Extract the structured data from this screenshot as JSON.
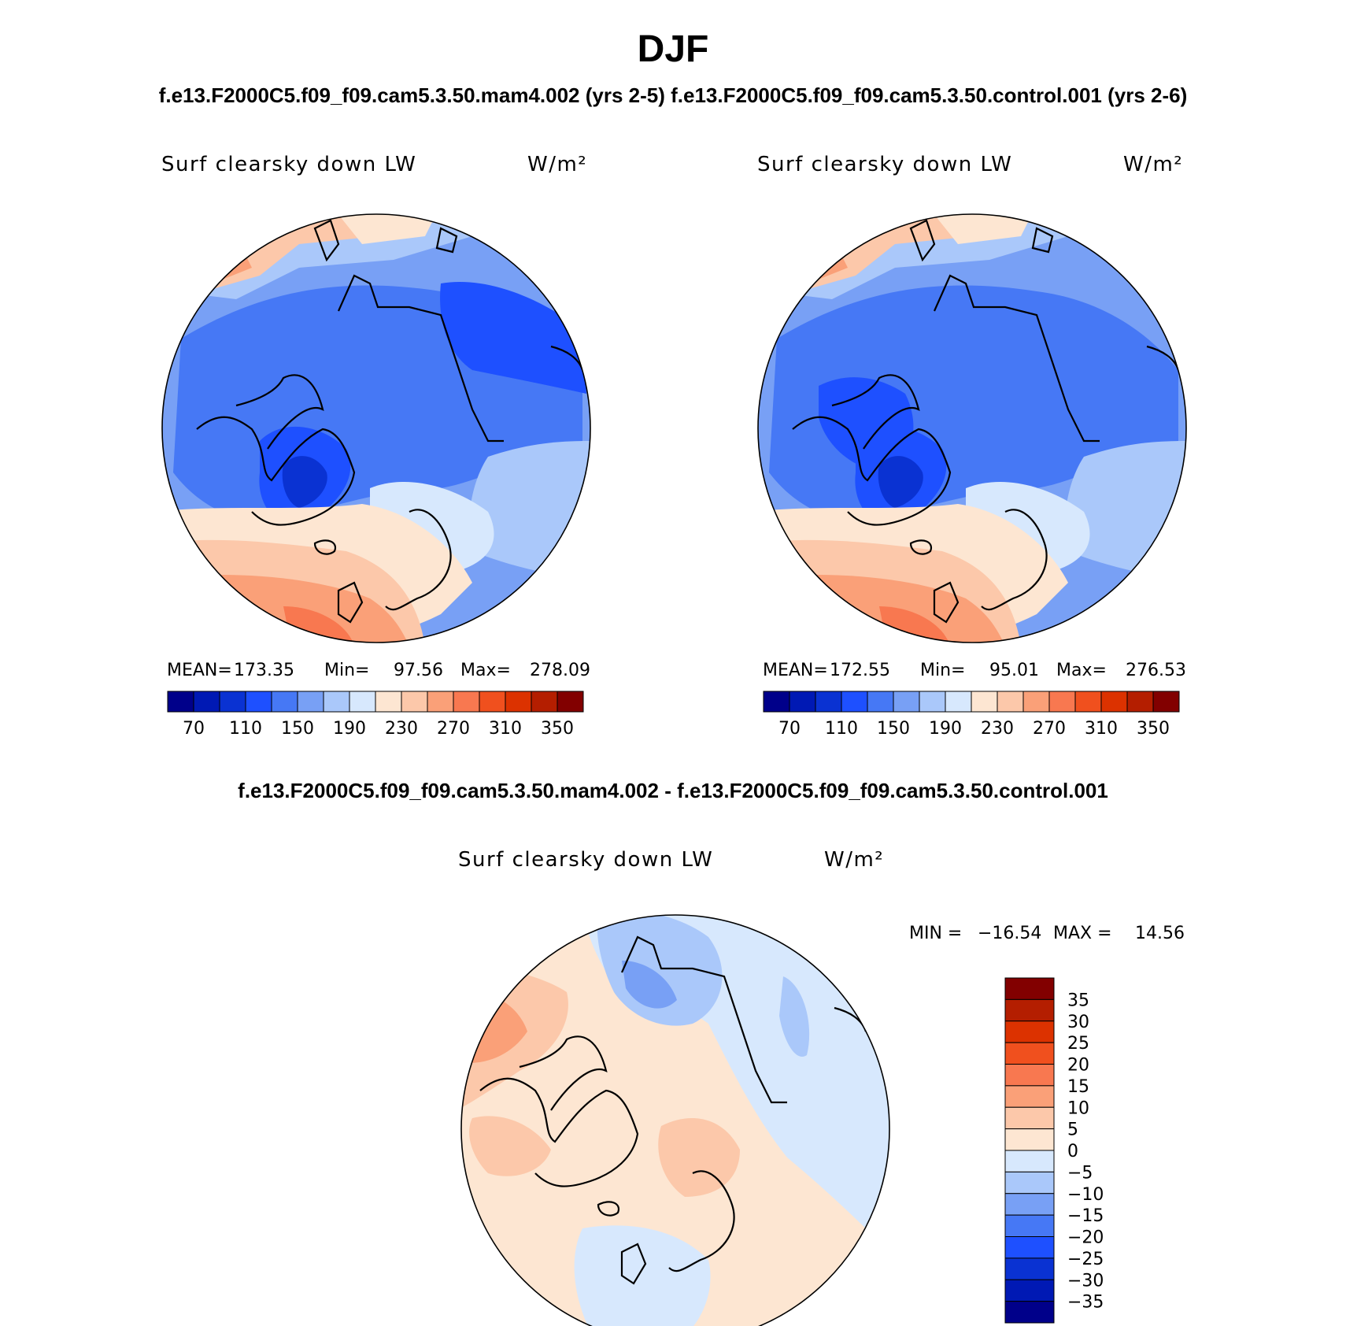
{
  "title": "DJF",
  "run_a": "f.e13.F2000C5.f09_f09.cam5.3.50.mam4.002",
  "run_b": "f.e13.F2000C5.f09_f09.cam5.3.50.control.001",
  "top_header": "f.e13.F2000C5.f09_f09.cam5.3.50.mam4.002 (yrs 2-5) f.e13.F2000C5.f09_f09.cam5.3.50.control.001 (yrs 2-6)",
  "diff_header": "f.e13.F2000C5.f09_f09.cam5.3.50.mam4.002 - f.e13.F2000C5.f09_f09.cam5.3.50.control.001",
  "chart_data": [
    {
      "type": "heatmap",
      "projection": "north polar stereographic",
      "variable": "Surf clearsky down LW",
      "units": "W/m²",
      "case": "f.e13.F2000C5.f09_f09.cam5.3.50.mam4.002 (yrs 2-5)",
      "stats": {
        "mean_label": "MEAN=",
        "mean": "173.35",
        "min_label": "Min=",
        "min": "97.56",
        "max_label": "Max=",
        "max": "278.09"
      },
      "levels": [
        70,
        90,
        110,
        130,
        150,
        170,
        190,
        210,
        230,
        250,
        270,
        290,
        310,
        330,
        350
      ],
      "tick_labels": [
        "70",
        "110",
        "150",
        "190",
        "230",
        "270",
        "310",
        "350"
      ],
      "colors": [
        "#00008a",
        "#0019b4",
        "#0a32d2",
        "#1e50ff",
        "#4678f5",
        "#78a0f5",
        "#aac8fa",
        "#d7e8fd",
        "#fde6d2",
        "#fcc8aa",
        "#faa078",
        "#f87850",
        "#f0501e",
        "#dc3200",
        "#b41e00",
        "#820000"
      ]
    },
    {
      "type": "heatmap",
      "projection": "north polar stereographic",
      "variable": "Surf clearsky down LW",
      "units": "W/m²",
      "case": "f.e13.F2000C5.f09_f09.cam5.3.50.control.001 (yrs 2-6)",
      "stats": {
        "mean_label": "MEAN=",
        "mean": "172.55",
        "min_label": "Min=",
        "min": "95.01",
        "max_label": "Max=",
        "max": "276.53"
      },
      "levels": [
        70,
        90,
        110,
        130,
        150,
        170,
        190,
        210,
        230,
        250,
        270,
        290,
        310,
        330,
        350
      ],
      "tick_labels": [
        "70",
        "110",
        "150",
        "190",
        "230",
        "270",
        "310",
        "350"
      ],
      "colors": [
        "#00008a",
        "#0019b4",
        "#0a32d2",
        "#1e50ff",
        "#4678f5",
        "#78a0f5",
        "#aac8fa",
        "#d7e8fd",
        "#fde6d2",
        "#fcc8aa",
        "#faa078",
        "#f87850",
        "#f0501e",
        "#dc3200",
        "#b41e00",
        "#820000"
      ]
    },
    {
      "type": "heatmap",
      "projection": "north polar stereographic",
      "variable": "Surf clearsky down LW",
      "units": "W/m²",
      "case": "f.e13.F2000C5.f09_f09.cam5.3.50.mam4.002 - f.e13.F2000C5.f09_f09.cam5.3.50.control.001",
      "stats": {
        "min_label": "MIN =",
        "min": "−16.54",
        "max_label": "MAX =",
        "max": "14.56"
      },
      "levels": [
        -35,
        -30,
        -25,
        -20,
        -15,
        -10,
        -5,
        0,
        5,
        10,
        15,
        20,
        25,
        30,
        35
      ],
      "tick_labels": [
        "35",
        "30",
        "25",
        "20",
        "15",
        "10",
        "5",
        "0",
        "−5",
        "−10",
        "−15",
        "−20",
        "−25",
        "−30",
        "−35"
      ],
      "colors": [
        "#820000",
        "#b41e00",
        "#dc3200",
        "#f0501e",
        "#f87850",
        "#faa078",
        "#fcc8aa",
        "#fde6d2",
        "#d7e8fd",
        "#aac8fa",
        "#78a0f5",
        "#4678f5",
        "#1e50ff",
        "#0a32d2",
        "#0019b4",
        "#00008a"
      ]
    }
  ]
}
